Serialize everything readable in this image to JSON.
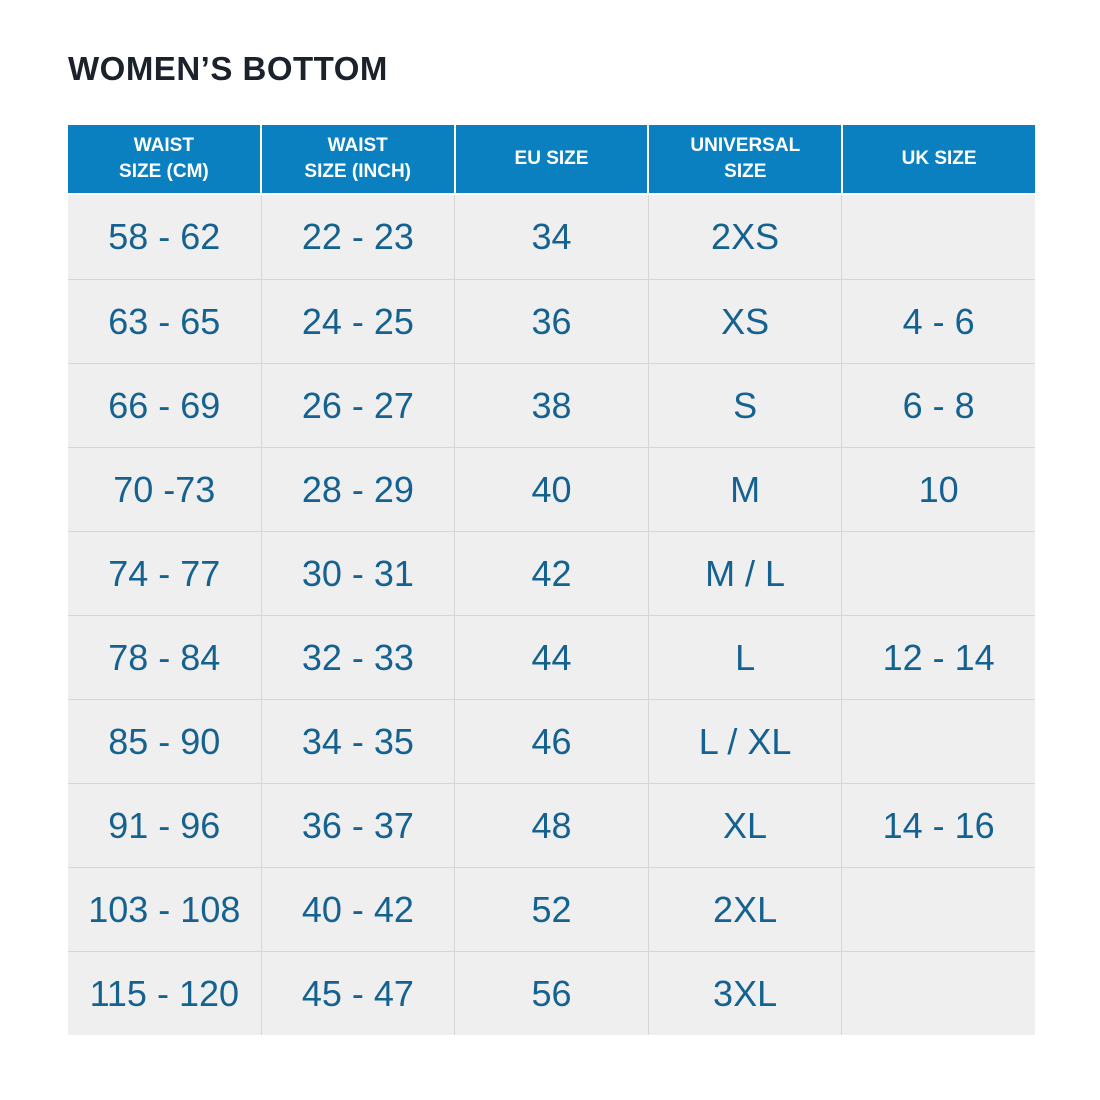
{
  "title": "WOMEN’S BOTTOM",
  "colors": {
    "header_bg": "#0a80c1",
    "header_text": "#ffffff",
    "row_bg": "#efefef",
    "cell_text": "#15618f",
    "grid_line": "#d6d6d6",
    "title_text": "#1b222b",
    "page_bg": "#ffffff"
  },
  "header_display": [
    "WAIST\nSIZE (CM)",
    "WAIST\nSIZE (INCH)",
    "EU SIZE",
    "UNIVERSAL\nSIZE",
    "UK SIZE"
  ],
  "chart_data": {
    "type": "table",
    "title": "WOMEN’S BOTTOM",
    "columns": [
      "WAIST SIZE (CM)",
      "WAIST SIZE (INCH)",
      "EU SIZE",
      "UNIVERSAL SIZE",
      "UK SIZE"
    ],
    "rows": [
      [
        "58 - 62",
        "22 - 23",
        "34",
        "2XS",
        ""
      ],
      [
        "63 - 65",
        "24 - 25",
        "36",
        "XS",
        "4 - 6"
      ],
      [
        "66 - 69",
        "26 - 27",
        "38",
        "S",
        "6 - 8"
      ],
      [
        "70 -73",
        "28 - 29",
        "40",
        "M",
        "10"
      ],
      [
        "74 - 77",
        "30 - 31",
        "42",
        "M / L",
        ""
      ],
      [
        "78 - 84",
        "32 - 33",
        "44",
        "L",
        "12 - 14"
      ],
      [
        "85 - 90",
        "34 - 35",
        "46",
        "L / XL",
        ""
      ],
      [
        "91 - 96",
        "36 - 37",
        "48",
        "XL",
        "14 - 16"
      ],
      [
        "103 - 108",
        "40 - 42",
        "52",
        "2XL",
        ""
      ],
      [
        "115 - 120",
        "45 - 47",
        "56",
        "3XL",
        ""
      ]
    ]
  }
}
